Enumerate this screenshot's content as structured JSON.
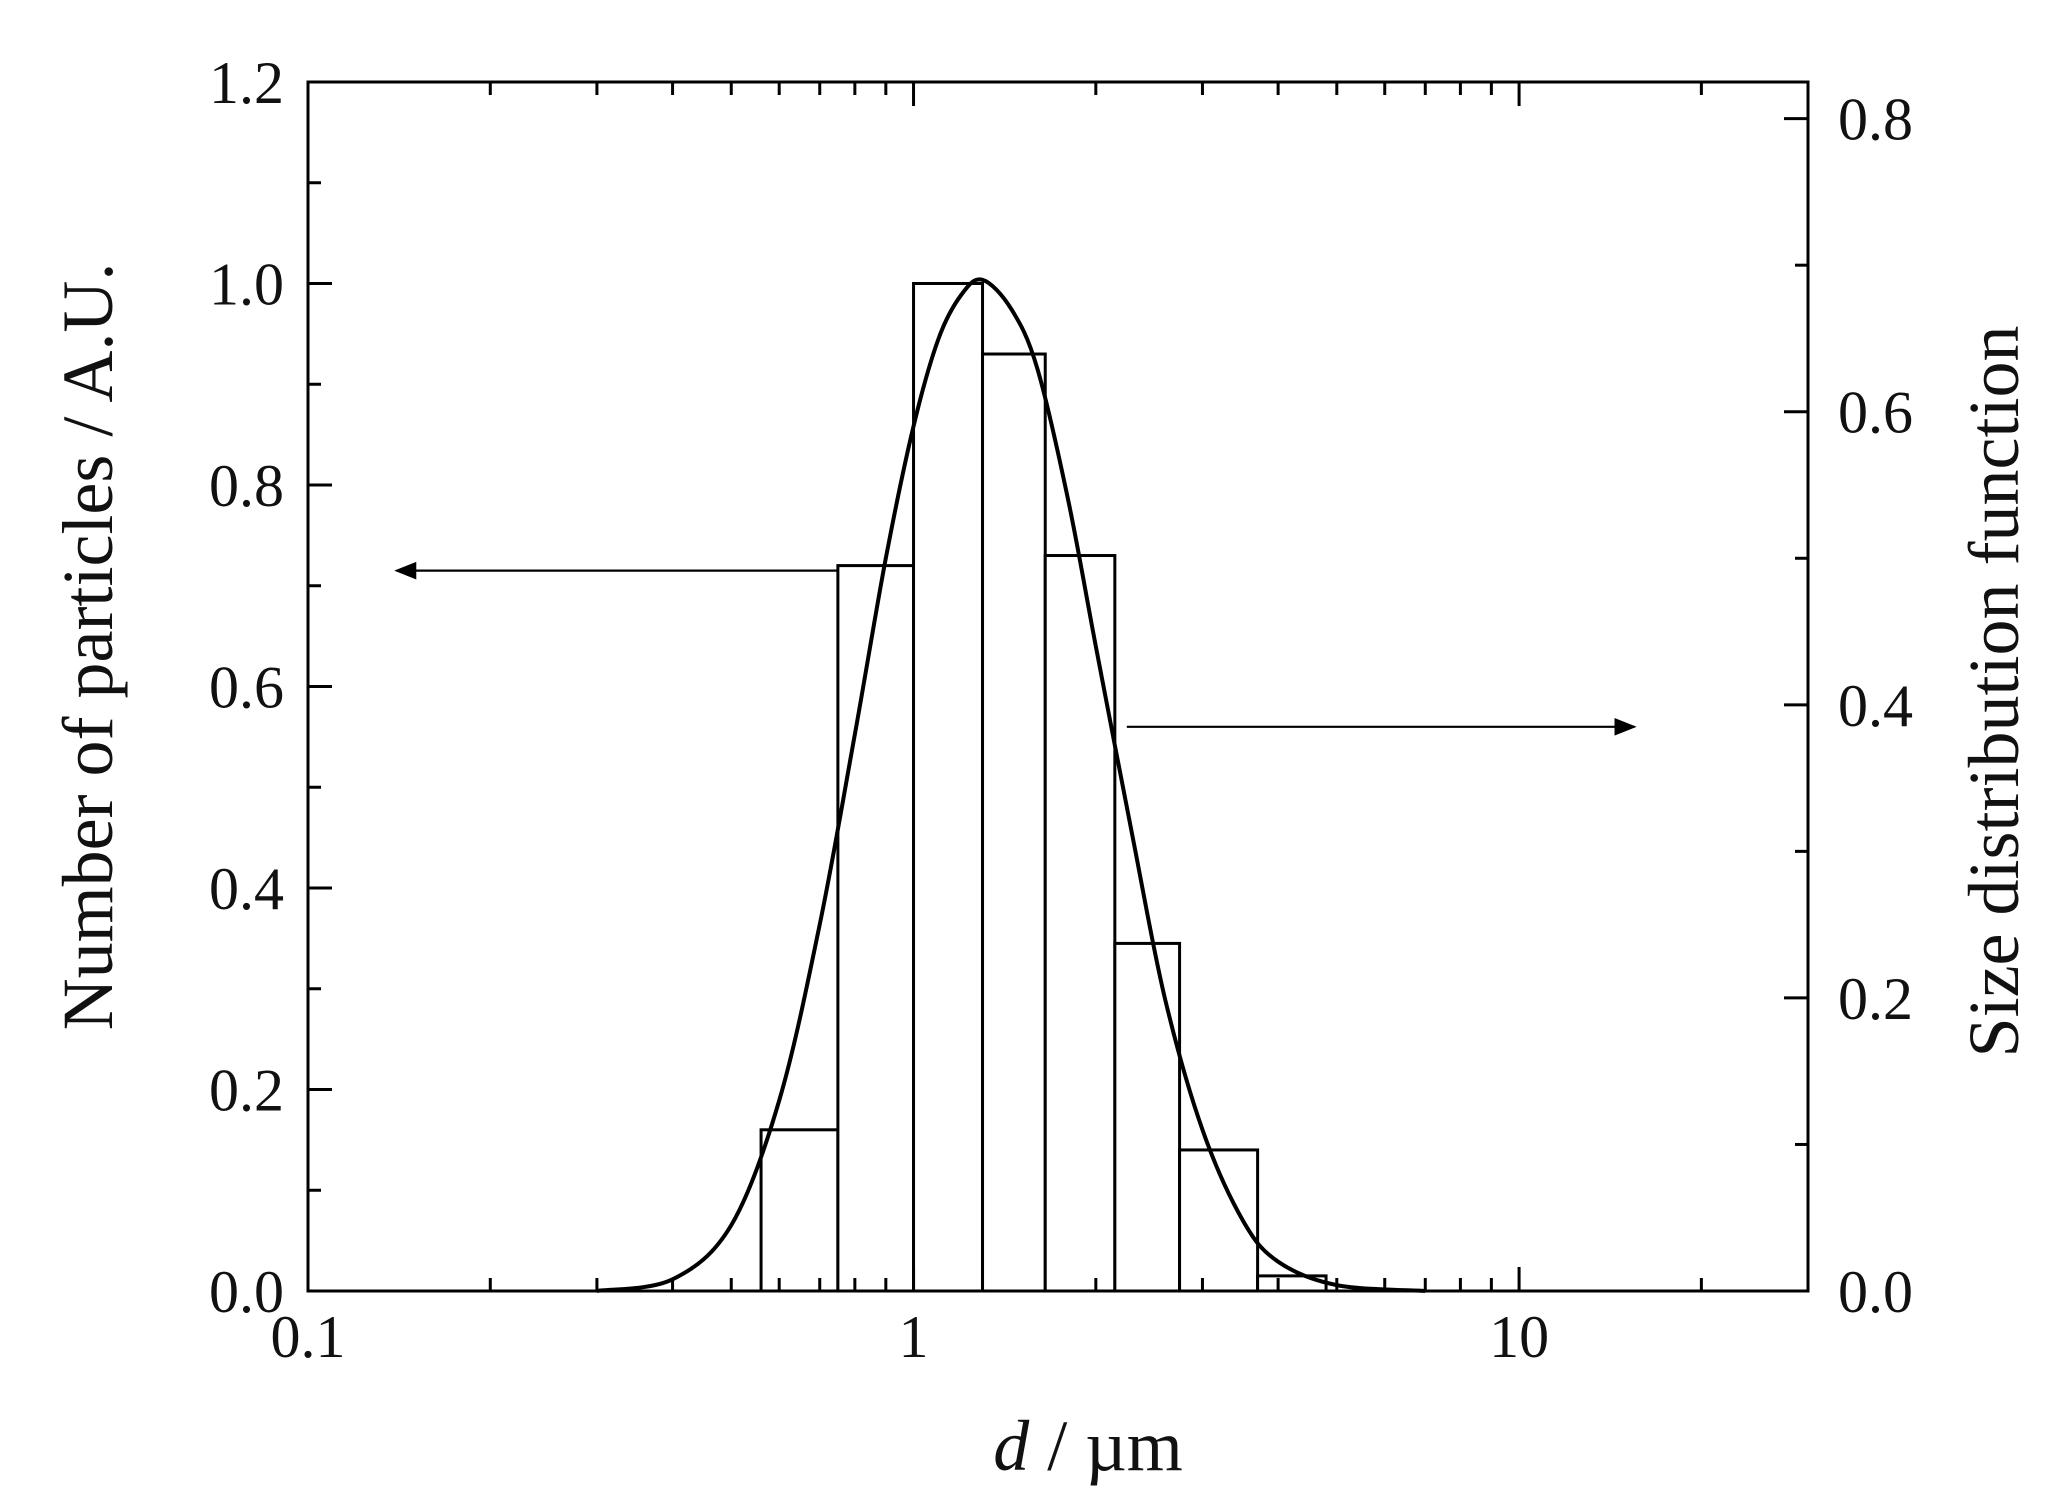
{
  "chart_data": {
    "type": "bar",
    "xscale": "log",
    "xlim": [
      0.1,
      30
    ],
    "x_ticks": [
      {
        "value": 0.1,
        "label": "0.1"
      },
      {
        "value": 1,
        "label": "1"
      },
      {
        "value": 10,
        "label": "10"
      }
    ],
    "xlabel": {
      "italic": "d",
      "rest": " / µm"
    },
    "ylabel_left": "Number of particles / A.U.",
    "ylim_left": [
      0,
      1.2
    ],
    "y_ticks_left": [
      "0.0",
      "0.2",
      "0.4",
      "0.6",
      "0.8",
      "1.0",
      "1.2"
    ],
    "ylabel_right": "Size distribution function",
    "ylim_right": [
      0,
      0.825
    ],
    "y_ticks_right": [
      "0.0",
      "0.2",
      "0.4",
      "0.6",
      "0.8"
    ],
    "histogram": {
      "name": "Number of particles",
      "axis": "left",
      "bins": [
        {
          "x0": 0.56,
          "x1": 0.75,
          "value": 0.16
        },
        {
          "x0": 0.75,
          "x1": 1.0,
          "value": 0.72
        },
        {
          "x0": 1.0,
          "x1": 1.3,
          "value": 1.0
        },
        {
          "x0": 1.3,
          "x1": 1.65,
          "value": 0.93
        },
        {
          "x0": 1.65,
          "x1": 2.15,
          "value": 0.73
        },
        {
          "x0": 2.15,
          "x1": 2.75,
          "value": 0.345
        },
        {
          "x0": 2.75,
          "x1": 3.7,
          "value": 0.14
        },
        {
          "x0": 3.7,
          "x1": 4.8,
          "value": 0.015
        }
      ]
    },
    "fit_curve": {
      "name": "Size distribution function",
      "axis": "right",
      "model": "log-normal",
      "points": [
        {
          "x": 0.3,
          "y": 0.0
        },
        {
          "x": 0.4,
          "y": 0.008
        },
        {
          "x": 0.5,
          "y": 0.045
        },
        {
          "x": 0.6,
          "y": 0.13
        },
        {
          "x": 0.7,
          "y": 0.25
        },
        {
          "x": 0.8,
          "y": 0.38
        },
        {
          "x": 0.9,
          "y": 0.5
        },
        {
          "x": 1.0,
          "y": 0.59
        },
        {
          "x": 1.1,
          "y": 0.65
        },
        {
          "x": 1.2,
          "y": 0.68
        },
        {
          "x": 1.3,
          "y": 0.69
        },
        {
          "x": 1.45,
          "y": 0.67
        },
        {
          "x": 1.6,
          "y": 0.63
        },
        {
          "x": 1.8,
          "y": 0.54
        },
        {
          "x": 2.0,
          "y": 0.44
        },
        {
          "x": 2.3,
          "y": 0.31
        },
        {
          "x": 2.6,
          "y": 0.2
        },
        {
          "x": 3.0,
          "y": 0.11
        },
        {
          "x": 3.5,
          "y": 0.048
        },
        {
          "x": 4.0,
          "y": 0.02
        },
        {
          "x": 5.0,
          "y": 0.004
        },
        {
          "x": 7.0,
          "y": 0.0
        }
      ]
    },
    "annotations": [
      {
        "type": "arrow",
        "direction": "left",
        "points_to": "left axis",
        "from": {
          "x": 0.75,
          "y": 0.715
        },
        "to": {
          "x": 0.14,
          "y": 0.715
        }
      },
      {
        "type": "arrow",
        "direction": "right",
        "points_to": "right axis",
        "from": {
          "x": 2.25,
          "y": 0.385
        },
        "to": {
          "x": 15.5,
          "y": 0.385
        }
      }
    ],
    "grid": false,
    "colors": {
      "bars_fill": "#ffffff",
      "bars_stroke": "#000000",
      "curve": "#000000",
      "axes": "#000000"
    }
  }
}
